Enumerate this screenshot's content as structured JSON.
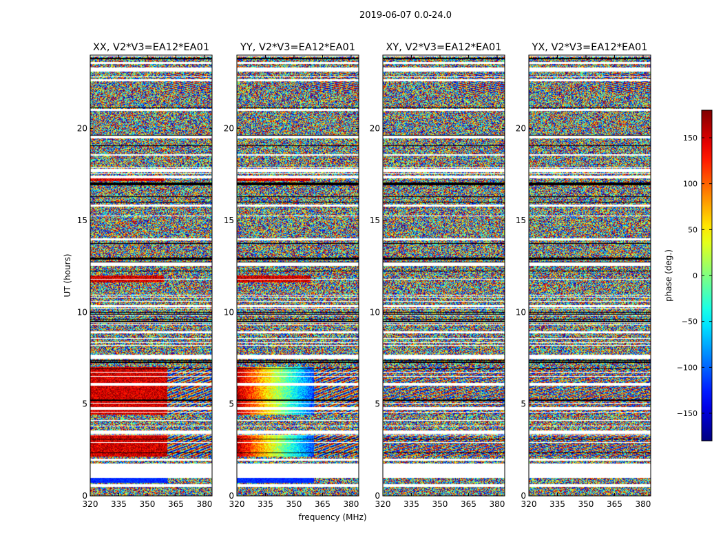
{
  "figure": {
    "suptitle": "2019-06-07 0.0-24.0",
    "xlabel": "frequency (MHz)",
    "ylabel": "UT (hours)",
    "colorbar_label": "phase (deg.)"
  },
  "chart_data": {
    "type": "heatmap",
    "x_ticks": [
      320,
      335,
      350,
      365,
      380
    ],
    "y_ticks": [
      0,
      5,
      10,
      15,
      20
    ],
    "xlim": [
      320,
      384
    ],
    "ylim": [
      0,
      24
    ],
    "colormap": "jet",
    "colorbar": {
      "range": [
        -180,
        180
      ],
      "ticks": [
        150,
        100,
        50,
        0,
        -50,
        -100,
        -150
      ],
      "tick_labels": [
        "150",
        "100",
        "50",
        "0",
        "−50",
        "−100",
        "−150"
      ]
    },
    "panels": [
      {
        "title": "XX, V2*V3=EA12*EA01",
        "pol": "XX"
      },
      {
        "title": "YY, V2*V3=EA12*EA01",
        "pol": "YY"
      },
      {
        "title": "XY, V2*V3=EA12*EA01",
        "pol": "XY"
      },
      {
        "title": "YX, V2*V3=EA12*EA01",
        "pol": "YX"
      }
    ]
  }
}
